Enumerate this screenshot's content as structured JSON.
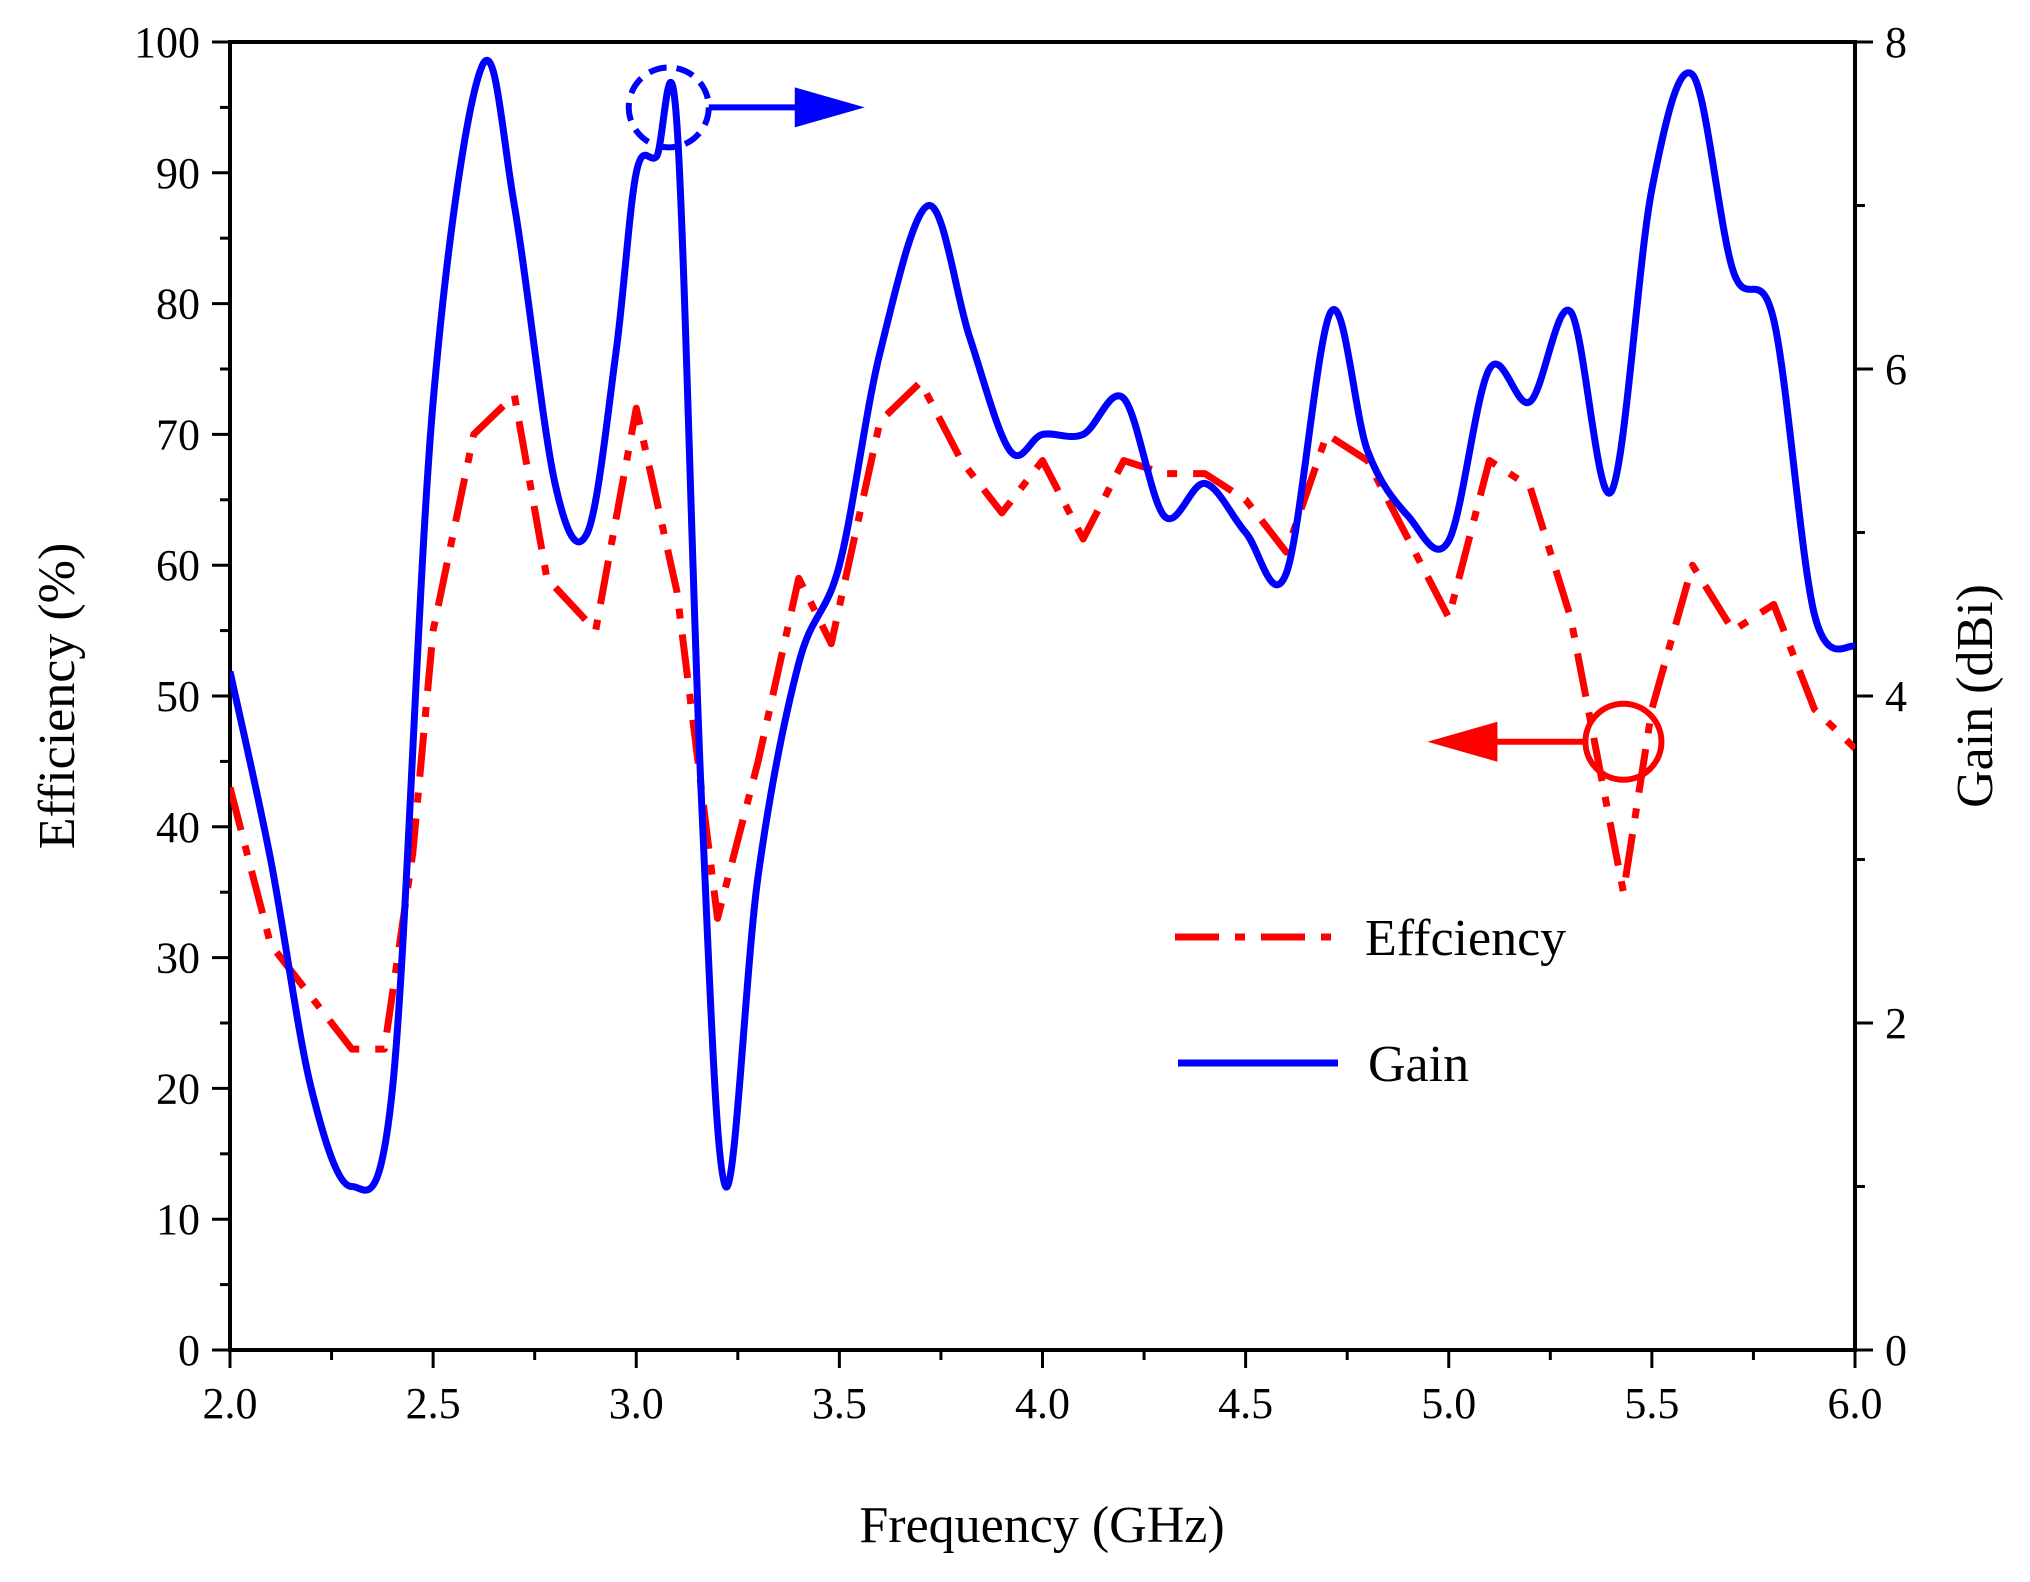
{
  "chart_data": {
    "type": "line",
    "xlabel": "Frequency (GHz)",
    "ylabel": "Efficiency (%)",
    "y2label": "Gain (dBi)",
    "xlim": [
      2.0,
      6.0
    ],
    "ylim": [
      0,
      100
    ],
    "y2lim": [
      0,
      8
    ],
    "x_ticks": [
      "2.0",
      "2.5",
      "3.0",
      "3.5",
      "4.0",
      "4.5",
      "5.0",
      "5.5",
      "6.0"
    ],
    "y_ticks": [
      "0",
      "10",
      "20",
      "30",
      "40",
      "50",
      "60",
      "70",
      "80",
      "90",
      "100"
    ],
    "y2_ticks": [
      "0",
      "2",
      "4",
      "6",
      "8"
    ],
    "legend": [
      "Effciency",
      "Gain"
    ],
    "legend_position": "lower-right",
    "series": [
      {
        "name": "Effciency",
        "axis": "left",
        "color": "#ff0000",
        "style": "dash-dot",
        "x": [
          2.0,
          2.1,
          2.2,
          2.3,
          2.38,
          2.45,
          2.5,
          2.6,
          2.7,
          2.78,
          2.9,
          3.0,
          3.1,
          3.2,
          3.3,
          3.4,
          3.48,
          3.6,
          3.7,
          3.8,
          3.9,
          4.0,
          4.1,
          4.2,
          4.3,
          4.4,
          4.5,
          4.6,
          4.7,
          4.8,
          4.9,
          5.0,
          5.1,
          5.2,
          5.3,
          5.43,
          5.5,
          5.6,
          5.7,
          5.8,
          5.9,
          6.0
        ],
        "y": [
          43,
          31,
          27,
          23,
          23,
          38,
          55,
          70,
          73,
          59,
          55,
          72,
          58,
          33,
          45,
          59,
          54,
          71,
          74,
          68,
          64,
          68,
          62,
          68,
          67,
          67,
          65,
          61,
          70,
          68,
          62,
          56,
          68,
          66,
          56,
          35,
          49,
          60,
          55,
          57,
          49,
          46
        ]
      },
      {
        "name": "Gain",
        "axis": "right",
        "color": "#0000ff",
        "style": "solid",
        "x": [
          2.0,
          2.1,
          2.2,
          2.3,
          2.4,
          2.5,
          2.62,
          2.7,
          2.8,
          2.88,
          2.95,
          3.0,
          3.05,
          3.1,
          3.16,
          3.22,
          3.3,
          3.4,
          3.5,
          3.6,
          3.72,
          3.82,
          3.92,
          4.0,
          4.1,
          4.2,
          4.3,
          4.4,
          4.5,
          4.6,
          4.71,
          4.8,
          4.9,
          5.0,
          5.1,
          5.2,
          5.3,
          5.4,
          5.5,
          5.6,
          5.7,
          5.8,
          5.9,
          6.0
        ],
        "y": [
          4.15,
          3.0,
          1.6,
          1.0,
          1.6,
          5.8,
          7.85,
          7.0,
          5.3,
          5.0,
          6.1,
          7.2,
          7.3,
          7.5,
          3.4,
          1.0,
          2.9,
          4.2,
          4.8,
          6.1,
          7.0,
          6.2,
          5.5,
          5.6,
          5.6,
          5.82,
          5.1,
          5.3,
          5.0,
          4.75,
          6.35,
          5.5,
          5.1,
          4.95,
          6.0,
          5.8,
          6.35,
          5.25,
          7.1,
          7.8,
          6.6,
          6.3,
          4.5,
          4.3
        ]
      }
    ],
    "annotations": [
      {
        "type": "circle-arrow",
        "series": "Gain",
        "at": [
          3.08,
          7.6
        ],
        "direction": "right"
      },
      {
        "type": "circle-arrow",
        "series": "Effciency",
        "at": [
          5.43,
          46.5
        ],
        "direction": "left"
      }
    ]
  }
}
